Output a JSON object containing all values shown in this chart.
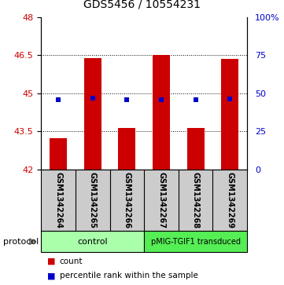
{
  "title": "GDS5456 / 10554231",
  "samples": [
    "GSM1342264",
    "GSM1342265",
    "GSM1342266",
    "GSM1342267",
    "GSM1342268",
    "GSM1342269"
  ],
  "bar_bottoms": [
    42,
    42,
    42,
    42,
    42,
    42
  ],
  "bar_tops": [
    43.25,
    46.4,
    43.65,
    46.5,
    43.65,
    46.35
  ],
  "percentile_values": [
    44.75,
    44.8,
    44.75,
    44.75,
    44.75,
    44.78
  ],
  "ylim_left": [
    42,
    48
  ],
  "ylim_right": [
    0,
    100
  ],
  "yticks_left": [
    42,
    43.5,
    45,
    46.5,
    48
  ],
  "ytick_labels_left": [
    "42",
    "43.5",
    "45",
    "46.5",
    "48"
  ],
  "yticks_right": [
    0,
    25,
    50,
    75,
    100
  ],
  "ytick_labels_right": [
    "0",
    "25",
    "50",
    "75",
    "100%"
  ],
  "bar_color": "#cc0000",
  "percentile_color": "#0000cc",
  "groups": [
    {
      "label": "control",
      "samples_range": [
        0,
        2
      ],
      "color": "#aaffaa"
    },
    {
      "label": "pMIG-TGIF1 transduced",
      "samples_range": [
        3,
        5
      ],
      "color": "#55ee55"
    }
  ],
  "protocol_label": "protocol",
  "legend_items": [
    {
      "color": "#cc0000",
      "label": "count"
    },
    {
      "color": "#0000cc",
      "label": "percentile rank within the sample"
    }
  ],
  "background_color": "#ffffff",
  "label_area_color": "#cccccc",
  "figsize": [
    3.61,
    3.63
  ],
  "dpi": 100
}
